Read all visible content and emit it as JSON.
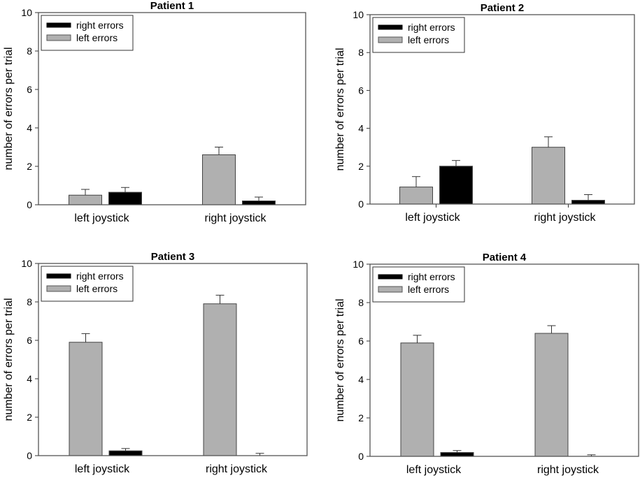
{
  "figure": {
    "colors": {
      "right_errors": "#000000",
      "left_errors": "#b0b0b0",
      "bar_edge": "#444444"
    }
  },
  "chart_data": [
    {
      "type": "bar",
      "title": "Patient 1",
      "xlabel": "",
      "ylabel": "number of errors per trial",
      "ylim": [
        0,
        10
      ],
      "yticks": [
        "0",
        "2",
        "4",
        "6",
        "8",
        "10"
      ],
      "categories": [
        "left joystick",
        "right joystick"
      ],
      "legend": {
        "placement": "top-left",
        "entries": [
          "right errors",
          "left errors"
        ]
      },
      "grid": false,
      "series": [
        {
          "name": "left errors",
          "values": [
            0.5,
            2.6
          ],
          "error": [
            0.3,
            0.4
          ]
        },
        {
          "name": "right errors",
          "values": [
            0.65,
            0.2
          ],
          "error": [
            0.25,
            0.2
          ]
        }
      ]
    },
    {
      "type": "bar",
      "title": "Patient 2",
      "xlabel": "",
      "ylabel": "number of errors per trial",
      "ylim": [
        0,
        10
      ],
      "yticks": [
        "0",
        "2",
        "4",
        "6",
        "8",
        "10"
      ],
      "categories": [
        "left joystick",
        "right joystick"
      ],
      "legend": {
        "placement": "top-left",
        "entries": [
          "right errors",
          "left errors"
        ]
      },
      "grid": false,
      "series": [
        {
          "name": "left errors",
          "values": [
            0.9,
            3.0
          ],
          "error": [
            0.55,
            0.55
          ]
        },
        {
          "name": "right errors",
          "values": [
            2.0,
            0.2
          ],
          "error": [
            0.3,
            0.3
          ]
        }
      ]
    },
    {
      "type": "bar",
      "title": "Patient 3",
      "xlabel": "",
      "ylabel": "number of errors per trial",
      "ylim": [
        0,
        10
      ],
      "yticks": [
        "0",
        "2",
        "4",
        "6",
        "8",
        "10"
      ],
      "categories": [
        "left joystick",
        "right joystick"
      ],
      "legend": {
        "placement": "top-left",
        "entries": [
          "right errors",
          "left errors"
        ]
      },
      "grid": false,
      "series": [
        {
          "name": "left errors",
          "values": [
            5.9,
            7.9
          ],
          "error": [
            0.45,
            0.45
          ]
        },
        {
          "name": "right errors",
          "values": [
            0.25,
            0.0
          ],
          "error": [
            0.12,
            0.12
          ]
        }
      ]
    },
    {
      "type": "bar",
      "title": "Patient 4",
      "xlabel": "",
      "ylabel": "number of errors per trial",
      "ylim": [
        0,
        10
      ],
      "yticks": [
        "0",
        "2",
        "4",
        "6",
        "8",
        "10"
      ],
      "categories": [
        "left joystick",
        "right joystick"
      ],
      "legend": {
        "placement": "top-left",
        "entries": [
          "right errors",
          "left errors"
        ]
      },
      "grid": false,
      "series": [
        {
          "name": "left errors",
          "values": [
            5.9,
            6.4
          ],
          "error": [
            0.4,
            0.4
          ]
        },
        {
          "name": "right errors",
          "values": [
            0.2,
            0.0
          ],
          "error": [
            0.1,
            0.08
          ]
        }
      ]
    }
  ]
}
